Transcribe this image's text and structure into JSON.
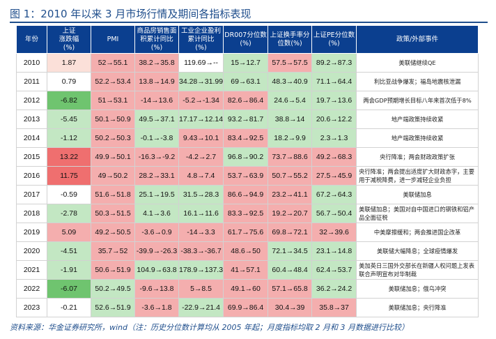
{
  "title": "图 1：2010 年以来 3 月市场行情及期间各指标表现",
  "headers": [
    "年份",
    "上证\n涨跌幅\n(%)",
    "PMI",
    "商品房销售面\n积累计同比\n(%)",
    "工业企业盈利\n累计同比\n(%)",
    "DR007分位数\n(%)",
    "上证换手率分\n位数(%)",
    "上证PE分位数\n(%)",
    "政策/外部事件"
  ],
  "colors": {
    "header_bg": "#0b3f8f",
    "red": "#f4aeae",
    "red_strong": "#ef6f6f",
    "green": "#c3e7c3",
    "green_strong": "#6fc46f",
    "rose": "#fbe0d9",
    "title": "#1f4e8c"
  },
  "rows": [
    {
      "cells": [
        "2010",
        "1.87",
        "52→55.1",
        "38.2→35.8",
        "119.69→--",
        "15→12.7",
        "57.5→57.5",
        "89.2→87.3",
        "美联储继续QE"
      ]
    },
    {
      "cells": [
        "2011",
        "0.79",
        "52.2→53.4",
        "13.8→14.9",
        "34.28→31.99",
        "69→63.1",
        "48.3→40.9",
        "71.1→64.4",
        "利比亚战争爆发；福岛地震核泄漏"
      ]
    },
    {
      "cells": [
        "2012",
        "-6.82",
        "51→53.1",
        "-14→13.6",
        "-5.2→-1.34",
        "82.6→86.4",
        "24.6→5.4",
        "19.7→13.6",
        "两会GDP预期增长目标八年来首次低于8%"
      ]
    },
    {
      "cells": [
        "2013",
        "-5.45",
        "50.1→50.9",
        "49.5→37.1",
        "17.17→12.14",
        "93.2→81.7",
        "38.8→14",
        "20.6→12.2",
        "地产端政策持续收紧"
      ]
    },
    {
      "cells": [
        "2014",
        "-1.12",
        "50.2→50.3",
        "-0.1→-3.8",
        "9.43→10.1",
        "83.4→92.5",
        "18.2→9.9",
        "2.3→1.3",
        "地产端政策持续收紧"
      ]
    },
    {
      "cells": [
        "2015",
        "13.22",
        "49.9→50.1",
        "-16.3→-9.2",
        "-4.2→2.7",
        "96.8→90.2",
        "73.7→88.6",
        "49.2→68.3",
        "央行降准；两会财政政策扩张"
      ]
    },
    {
      "cells": [
        "2016",
        "11.75",
        "49→50.2",
        "28.2→33.1",
        "4.8→7.4",
        "53.7→63.9",
        "50.7→55.2",
        "27.5→45.9",
        "央行降准；两会提出适度扩大财政赤字，主要用于减税降费，进一步减轻企业负担"
      ]
    },
    {
      "cells": [
        "2017",
        "-0.59",
        "51.6→51.8",
        "25.1→19.5",
        "31.5→28.3",
        "86.6→94.9",
        "23.2→41.1",
        "67.2→64.3",
        "美联储加息"
      ]
    },
    {
      "cells": [
        "2018",
        "-2.78",
        "50.3→51.5",
        "4.1→3.6",
        "16.1→11.6",
        "83.3→92.5",
        "19.2→20.7",
        "56.7→50.4",
        "美联储加息；美国对自中国进口的钢铁和铝产品全面征税"
      ]
    },
    {
      "cells": [
        "2019",
        "5.09",
        "49.2→50.5",
        "-3.6→0.9",
        "-14→3.3",
        "61.7→75.6",
        "69.8→72.1",
        "32→39.6",
        "中美摩擦缓和；两会推进国企改革"
      ]
    },
    {
      "cells": [
        "2020",
        "-4.51",
        "35.7→52",
        "-39.9→-26.3",
        "-38.3→-36.7",
        "48.6→50",
        "72.1→34.5",
        "23.1→14.8",
        "美联储大幅降息；全球疫情爆发"
      ]
    },
    {
      "cells": [
        "2021",
        "-1.91",
        "50.6→51.9",
        "104.9→63.8",
        "178.9→137.3",
        "41→57.1",
        "60.4→48.4",
        "62.4→53.7",
        "美加英日三国外交部长在新疆人权问题上发表联合声明宣布对华制裁"
      ]
    },
    {
      "cells": [
        "2022",
        "-6.07",
        "50.2→49.5",
        "-9.6→13.8",
        "5→8.5",
        "49.1→60",
        "57.1→65.8",
        "36.2→24.2",
        "美联储加息；俄乌冲突"
      ]
    },
    {
      "cells": [
        "2023",
        "-0.21",
        "52.6→51.9",
        "-3.6→1.8",
        "-22.9→21.4",
        "69.9→86.4",
        "30.4→39",
        "35.8→37",
        "美联储加息；央行降准"
      ]
    }
  ],
  "shading": [
    [
      "",
      "red",
      "red",
      "red",
      "",
      "green",
      "red",
      "green",
      ""
    ],
    [
      "",
      "",
      "red",
      "red",
      "green",
      "green",
      "green",
      "green",
      ""
    ],
    [
      "",
      "green_strong",
      "red",
      "red",
      "red",
      "red",
      "green",
      "green",
      ""
    ],
    [
      "",
      "green",
      "red",
      "green",
      "green",
      "green",
      "green",
      "green",
      ""
    ],
    [
      "",
      "green",
      "red",
      "green",
      "red",
      "red",
      "green",
      "green",
      ""
    ],
    [
      "",
      "red_strong",
      "red",
      "red",
      "red",
      "green",
      "red",
      "red",
      ""
    ],
    [
      "",
      "red_strong",
      "red",
      "red",
      "red",
      "red",
      "red",
      "red",
      ""
    ],
    [
      "",
      "",
      "red",
      "green",
      "green",
      "red",
      "red",
      "green",
      ""
    ],
    [
      "",
      "green",
      "red",
      "green",
      "green",
      "red",
      "red",
      "green",
      ""
    ],
    [
      "",
      "red",
      "red",
      "red",
      "red",
      "red",
      "red",
      "red",
      ""
    ],
    [
      "",
      "green",
      "red",
      "red",
      "red",
      "red",
      "green",
      "green",
      ""
    ],
    [
      "",
      "green",
      "red",
      "green",
      "green",
      "red",
      "green",
      "green",
      ""
    ],
    [
      "",
      "green_strong",
      "green",
      "red",
      "red",
      "red",
      "red",
      "green",
      ""
    ],
    [
      "",
      "",
      "green",
      "red",
      "green",
      "red",
      "red",
      "red",
      ""
    ]
  ],
  "source": "资料来源：华金证券研究所，wind（注：历史分位数计算均从 2005 年起；月度指标均取 2 月和 3 月数据进行比较）"
}
